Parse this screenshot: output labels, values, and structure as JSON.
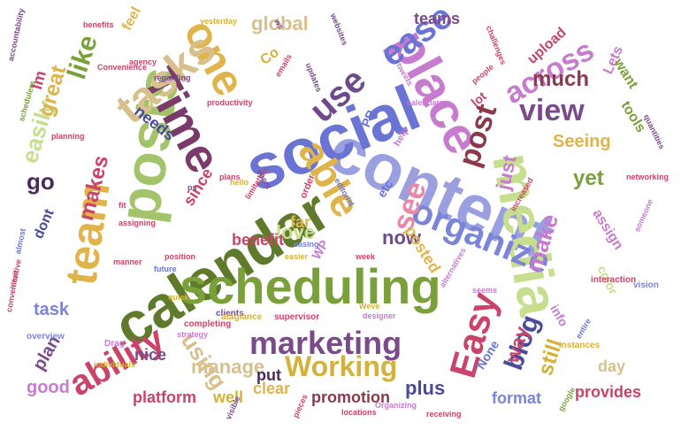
{
  "words": [
    {
      "text": "calendar",
      "color": "#5e7a2a"
    },
    {
      "text": "scheduling",
      "color": "#7aa03a"
    },
    {
      "text": "content",
      "color": "#9a9fe0"
    },
    {
      "text": "social",
      "color": "#6a74d4"
    },
    {
      "text": "posts",
      "color": "#a3c46a"
    },
    {
      "text": "media",
      "color": "#c6de8e"
    },
    {
      "text": "place",
      "color": "#c77bcf"
    },
    {
      "text": "Time",
      "color": "#7a3a6a"
    },
    {
      "text": "one",
      "color": "#e0b44a"
    },
    {
      "text": "tasks",
      "color": "#d8c08c"
    },
    {
      "text": "team",
      "color": "#e0b44a"
    },
    {
      "text": "able",
      "color": "#e0b44a"
    },
    {
      "text": "marketing",
      "color": "#7a4a8a"
    },
    {
      "text": "organize",
      "color": "#7a84d8"
    },
    {
      "text": "ability",
      "color": "#c9436a"
    },
    {
      "text": "Working",
      "color": "#d4b23a"
    },
    {
      "text": "Easy",
      "color": "#c9436a"
    },
    {
      "text": "use",
      "color": "#6e4a8c"
    },
    {
      "text": "ease",
      "color": "#6a74d4"
    },
    {
      "text": "across",
      "color": "#c77bcf"
    },
    {
      "text": "post",
      "color": "#8a3a4a"
    },
    {
      "text": "view",
      "color": "#7a4a8a"
    },
    {
      "text": "see",
      "color": "#e889a8"
    },
    {
      "text": "like",
      "color": "#7aa03a"
    },
    {
      "text": "much",
      "color": "#8a3a4a"
    },
    {
      "text": "blog",
      "color": "#4a4a9a"
    },
    {
      "text": "manage",
      "color": "#d8c08c"
    },
    {
      "text": "using",
      "color": "#d8c08c"
    },
    {
      "text": "make",
      "color": "#c77bcf"
    },
    {
      "text": "love",
      "color": "#c6de8e"
    },
    {
      "text": "plus",
      "color": "#4a4a9a"
    },
    {
      "text": "go",
      "color": "#4a2a5a"
    },
    {
      "text": "easily",
      "color": "#c6de8e"
    },
    {
      "text": "makes",
      "color": "#c9436a"
    },
    {
      "text": "global",
      "color": "#d8c08c"
    },
    {
      "text": "great",
      "color": "#e0b44a"
    },
    {
      "text": "task",
      "color": "#7a84d8"
    },
    {
      "text": "plan",
      "color": "#7a4a8a"
    },
    {
      "text": "good",
      "color": "#c77bcf"
    },
    {
      "text": "platform",
      "color": "#c9436a"
    },
    {
      "text": "promotion",
      "color": "#8a3a4a"
    },
    {
      "text": "format",
      "color": "#7a84d8"
    },
    {
      "text": "provides",
      "color": "#c9436a"
    },
    {
      "text": "still",
      "color": "#d4b23a"
    },
    {
      "text": "yet",
      "color": "#7aa03a"
    },
    {
      "text": "Seeing",
      "color": "#e0b44a"
    },
    {
      "text": "just",
      "color": "#c77bcf"
    },
    {
      "text": "now",
      "color": "#6e4a8c"
    },
    {
      "text": "way",
      "color": "#c9436a"
    },
    {
      "text": "day",
      "color": "#d8c08c"
    },
    {
      "text": "nice",
      "color": "#7a4a8a"
    },
    {
      "text": "well",
      "color": "#d4b23a"
    },
    {
      "text": "clear",
      "color": "#e0b44a"
    },
    {
      "text": "put",
      "color": "#4a2a5a"
    },
    {
      "text": "posted",
      "color": "#e0b44a"
    },
    {
      "text": "far",
      "color": "#e0b44a"
    },
    {
      "text": "benefit",
      "color": "#c9436a"
    },
    {
      "text": "since",
      "color": "#c9436a"
    },
    {
      "text": "needs",
      "color": "#4a4a9a"
    },
    {
      "text": "feel",
      "color": "#e0b44a"
    },
    {
      "text": "Im",
      "color": "#c9436a"
    },
    {
      "text": "dont",
      "color": "#4a4a9a"
    },
    {
      "text": "teams",
      "color": "#7a4a8a"
    },
    {
      "text": "upload",
      "color": "#c9436a"
    },
    {
      "text": "Lets",
      "color": "#c77bcf"
    },
    {
      "text": "want",
      "color": "#7aa03a"
    },
    {
      "text": "tools",
      "color": "#7aa03a"
    },
    {
      "text": "assign",
      "color": "#c77bcf"
    },
    {
      "text": "color",
      "color": "#c6de8e"
    },
    {
      "text": "info",
      "color": "#c77bcf"
    },
    {
      "text": "None",
      "color": "#6a74d4"
    },
    {
      "text": "etc",
      "color": "#6a74d4"
    },
    {
      "text": "WP",
      "color": "#c77bcf"
    },
    {
      "text": "PR",
      "color": "#6a74d4"
    },
    {
      "text": "lot",
      "color": "#c9436a"
    },
    {
      "text": "Co",
      "color": "#d4b23a"
    },
    {
      "text": "help",
      "color": "#c77bcf"
    },
    {
      "text": "order",
      "color": "#c9436a"
    },
    {
      "text": "clients",
      "color": "#7a4a8a"
    },
    {
      "text": "supervisor",
      "color": "#c9436a"
    },
    {
      "text": "ataglance",
      "color": "#d4b23a"
    },
    {
      "text": "completing",
      "color": "#c9436a"
    },
    {
      "text": "strategy",
      "color": "#c77bcf"
    },
    {
      "text": "Drag",
      "color": "#c77bcf"
    },
    {
      "text": "overview",
      "color": "#7a84d8"
    },
    {
      "text": "convenient",
      "color": "#c9436a"
    },
    {
      "text": "individuals",
      "color": "#d4b23a"
    },
    {
      "text": "designer",
      "color": "#c77bcf"
    },
    {
      "text": "Weve",
      "color": "#d4b23a"
    },
    {
      "text": "locations",
      "color": "#c9436a"
    },
    {
      "text": "Organizing",
      "color": "#c77bcf"
    },
    {
      "text": "receiving",
      "color": "#c9436a"
    },
    {
      "text": "google",
      "color": "#7aa03a"
    },
    {
      "text": "instances",
      "color": "#d4b23a"
    },
    {
      "text": "entire",
      "color": "#6a74d4"
    },
    {
      "text": "interaction",
      "color": "#c9436a"
    },
    {
      "text": "vision",
      "color": "#7a84d8"
    },
    {
      "text": "assigning",
      "color": "#c9436a"
    },
    {
      "text": "quick",
      "color": "#d4b23a"
    },
    {
      "text": "position",
      "color": "#c9436a"
    },
    {
      "text": "future",
      "color": "#6a74d4"
    },
    {
      "text": "manner",
      "color": "#c9436a"
    },
    {
      "text": "easier",
      "color": "#d4b23a"
    },
    {
      "text": "increased",
      "color": "#c9436a"
    },
    {
      "text": "someone",
      "color": "#c77bcf"
    },
    {
      "text": "networking",
      "color": "#c9436a"
    },
    {
      "text": "quantities",
      "color": "#7a4a8a"
    },
    {
      "text": "challenges",
      "color": "#c9436a"
    },
    {
      "text": "websites",
      "color": "#7a4a8a"
    },
    {
      "text": "yesterday",
      "color": "#d4b23a"
    },
    {
      "text": "benefits",
      "color": "#c9436a"
    },
    {
      "text": "accountability",
      "color": "#7a4a8a"
    },
    {
      "text": "Convenience",
      "color": "#c9436a"
    },
    {
      "text": "regarding",
      "color": "#7a4a8a"
    },
    {
      "text": "agency",
      "color": "#c9436a"
    },
    {
      "text": "emails",
      "color": "#c9436a"
    },
    {
      "text": "updates",
      "color": "#7a4a8a"
    },
    {
      "text": "tweets",
      "color": "#c77bcf"
    },
    {
      "text": "people",
      "color": "#c9436a"
    },
    {
      "text": "planning",
      "color": "#c9436a"
    },
    {
      "text": "productivity",
      "color": "#c9436a"
    },
    {
      "text": "schedulers",
      "color": "#7aa03a"
    },
    {
      "text": "limitation",
      "color": "#c9436a"
    },
    {
      "text": "almost",
      "color": "#6a74d4"
    },
    {
      "text": "intuitive",
      "color": "#c9436a"
    },
    {
      "text": "seems",
      "color": "#c77bcf"
    },
    {
      "text": "week",
      "color": "#c9436a"
    },
    {
      "text": "easing",
      "color": "#7a84d8"
    },
    {
      "text": "alternatives",
      "color": "#c77bcf"
    },
    {
      "text": "editorial",
      "color": "#6a74d4"
    },
    {
      "text": "spent",
      "color": "#7a4a8a"
    },
    {
      "text": "plans",
      "color": "#c9436a"
    },
    {
      "text": "ps",
      "color": "#7a4a8a"
    },
    {
      "text": "hello",
      "color": "#d4b23a"
    },
    {
      "text": "calendars",
      "color": "#c77bcf"
    },
    {
      "text": "pieces",
      "color": "#c9436a"
    },
    {
      "text": "visible",
      "color": "#7a4a8a"
    },
    {
      "text": "fit",
      "color": "#c9436a"
    },
    {
      "text": "ws",
      "color": "#7a4a8a"
    }
  ]
}
